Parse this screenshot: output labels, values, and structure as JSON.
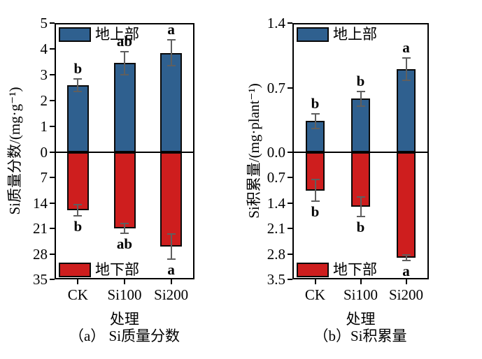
{
  "figure": {
    "background": "#ffffff",
    "colors": {
      "shoot_fill": "#2F608F",
      "root_fill": "#CE1E1E",
      "bar_edge": "#0a0a0a",
      "error_bar": "#5f5f5f",
      "axis": "#000000"
    }
  },
  "chart_data": [
    {
      "id": "a",
      "type": "bar",
      "caption": "（a） Si质量分数",
      "xlabel": "处理",
      "ylabel": "Si质量分数/(mg·g⁻¹)",
      "categories": [
        "CK",
        "Si100",
        "Si200"
      ],
      "axis_up": {
        "max": 5,
        "tick_values": [
          5,
          4,
          3,
          2,
          1,
          0
        ],
        "tick_labels": [
          "5",
          "4",
          "3",
          "2",
          "1",
          "0"
        ]
      },
      "axis_down": {
        "max": 35,
        "tick_values": [
          7,
          14,
          21,
          28,
          35
        ],
        "tick_labels": [
          "7",
          "14",
          "21",
          "28",
          "35"
        ]
      },
      "series": [
        {
          "name": "地上部",
          "part": "shoot",
          "direction": "up",
          "values": [
            2.6,
            3.45,
            3.85
          ],
          "errors": [
            0.25,
            0.45,
            0.5
          ],
          "letters": [
            "b",
            "ab",
            "a"
          ]
        },
        {
          "name": "地下部",
          "part": "root",
          "direction": "down",
          "values": [
            16.0,
            21.0,
            26.0
          ],
          "errors": [
            1.5,
            1.3,
            3.5
          ],
          "letters": [
            "b",
            "ab",
            "a"
          ]
        }
      ]
    },
    {
      "id": "b",
      "type": "bar",
      "caption": "（b）Si积累量",
      "xlabel": "处理",
      "ylabel": "Si积累量/(mg·plant⁻¹)",
      "categories": [
        "CK",
        "Si100",
        "Si200"
      ],
      "axis_up": {
        "max": 1.4,
        "tick_values": [
          1.4,
          0.7,
          0
        ],
        "tick_labels": [
          "1.4",
          "0.7",
          "0.0"
        ]
      },
      "axis_down": {
        "max": 3.5,
        "tick_values": [
          0.7,
          1.4,
          2.1,
          2.8,
          3.5
        ],
        "tick_labels": [
          "0.7",
          "1.4",
          "2.1",
          "2.8",
          "3.5"
        ]
      },
      "series": [
        {
          "name": "地上部",
          "part": "shoot",
          "direction": "up",
          "values": [
            0.34,
            0.58,
            0.9
          ],
          "errors": [
            0.08,
            0.08,
            0.12
          ],
          "letters": [
            "b",
            "b",
            "a"
          ]
        },
        {
          "name": "地下部",
          "part": "root",
          "direction": "down",
          "values": [
            1.05,
            1.5,
            2.9
          ],
          "errors": [
            0.3,
            0.27,
            0.08
          ],
          "letters": [
            "b",
            "b",
            "a"
          ]
        }
      ]
    }
  ]
}
